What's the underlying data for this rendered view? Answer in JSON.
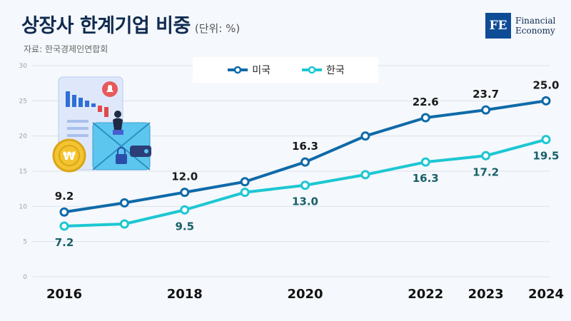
{
  "title": "상장사 한계기업 비중",
  "unit": "(단위: %)",
  "source": "자료: 한국경제인연합회",
  "logo": {
    "mark": "FE",
    "line1": "Financial",
    "line2": "Economy"
  },
  "colors": {
    "us": "#0e6aa8",
    "kr": "#1cc7d2",
    "kr_label": "#17606a",
    "grid": "#dde4ec",
    "bg": "#f5f8fc"
  },
  "chart_data": {
    "type": "line",
    "x": [
      2016,
      2017,
      2018,
      2019,
      2020,
      2021,
      2022,
      2023,
      2024
    ],
    "x_tick_labels": [
      "2016",
      "",
      "2018",
      "",
      "2020",
      "",
      "2022",
      "2023",
      "2024"
    ],
    "ylim": [
      0,
      30
    ],
    "yticks": [
      0,
      5,
      10,
      15,
      20,
      25,
      30
    ],
    "grid": true,
    "legend_position": "top-center",
    "series": [
      {
        "name": "미국",
        "values": [
          9.2,
          10.5,
          12.0,
          13.5,
          16.3,
          20.0,
          22.6,
          23.7,
          25.0
        ],
        "labels": [
          "9.2",
          "",
          "12.0",
          "",
          "16.3",
          "",
          "22.6",
          "23.7",
          "25.0"
        ]
      },
      {
        "name": "한국",
        "values": [
          7.2,
          7.5,
          9.5,
          12.0,
          13.0,
          14.5,
          16.3,
          17.2,
          19.5
        ],
        "labels": [
          "7.2",
          "",
          "9.5",
          "",
          "13.0",
          "",
          "16.3",
          "17.2",
          "19.5"
        ]
      }
    ]
  }
}
